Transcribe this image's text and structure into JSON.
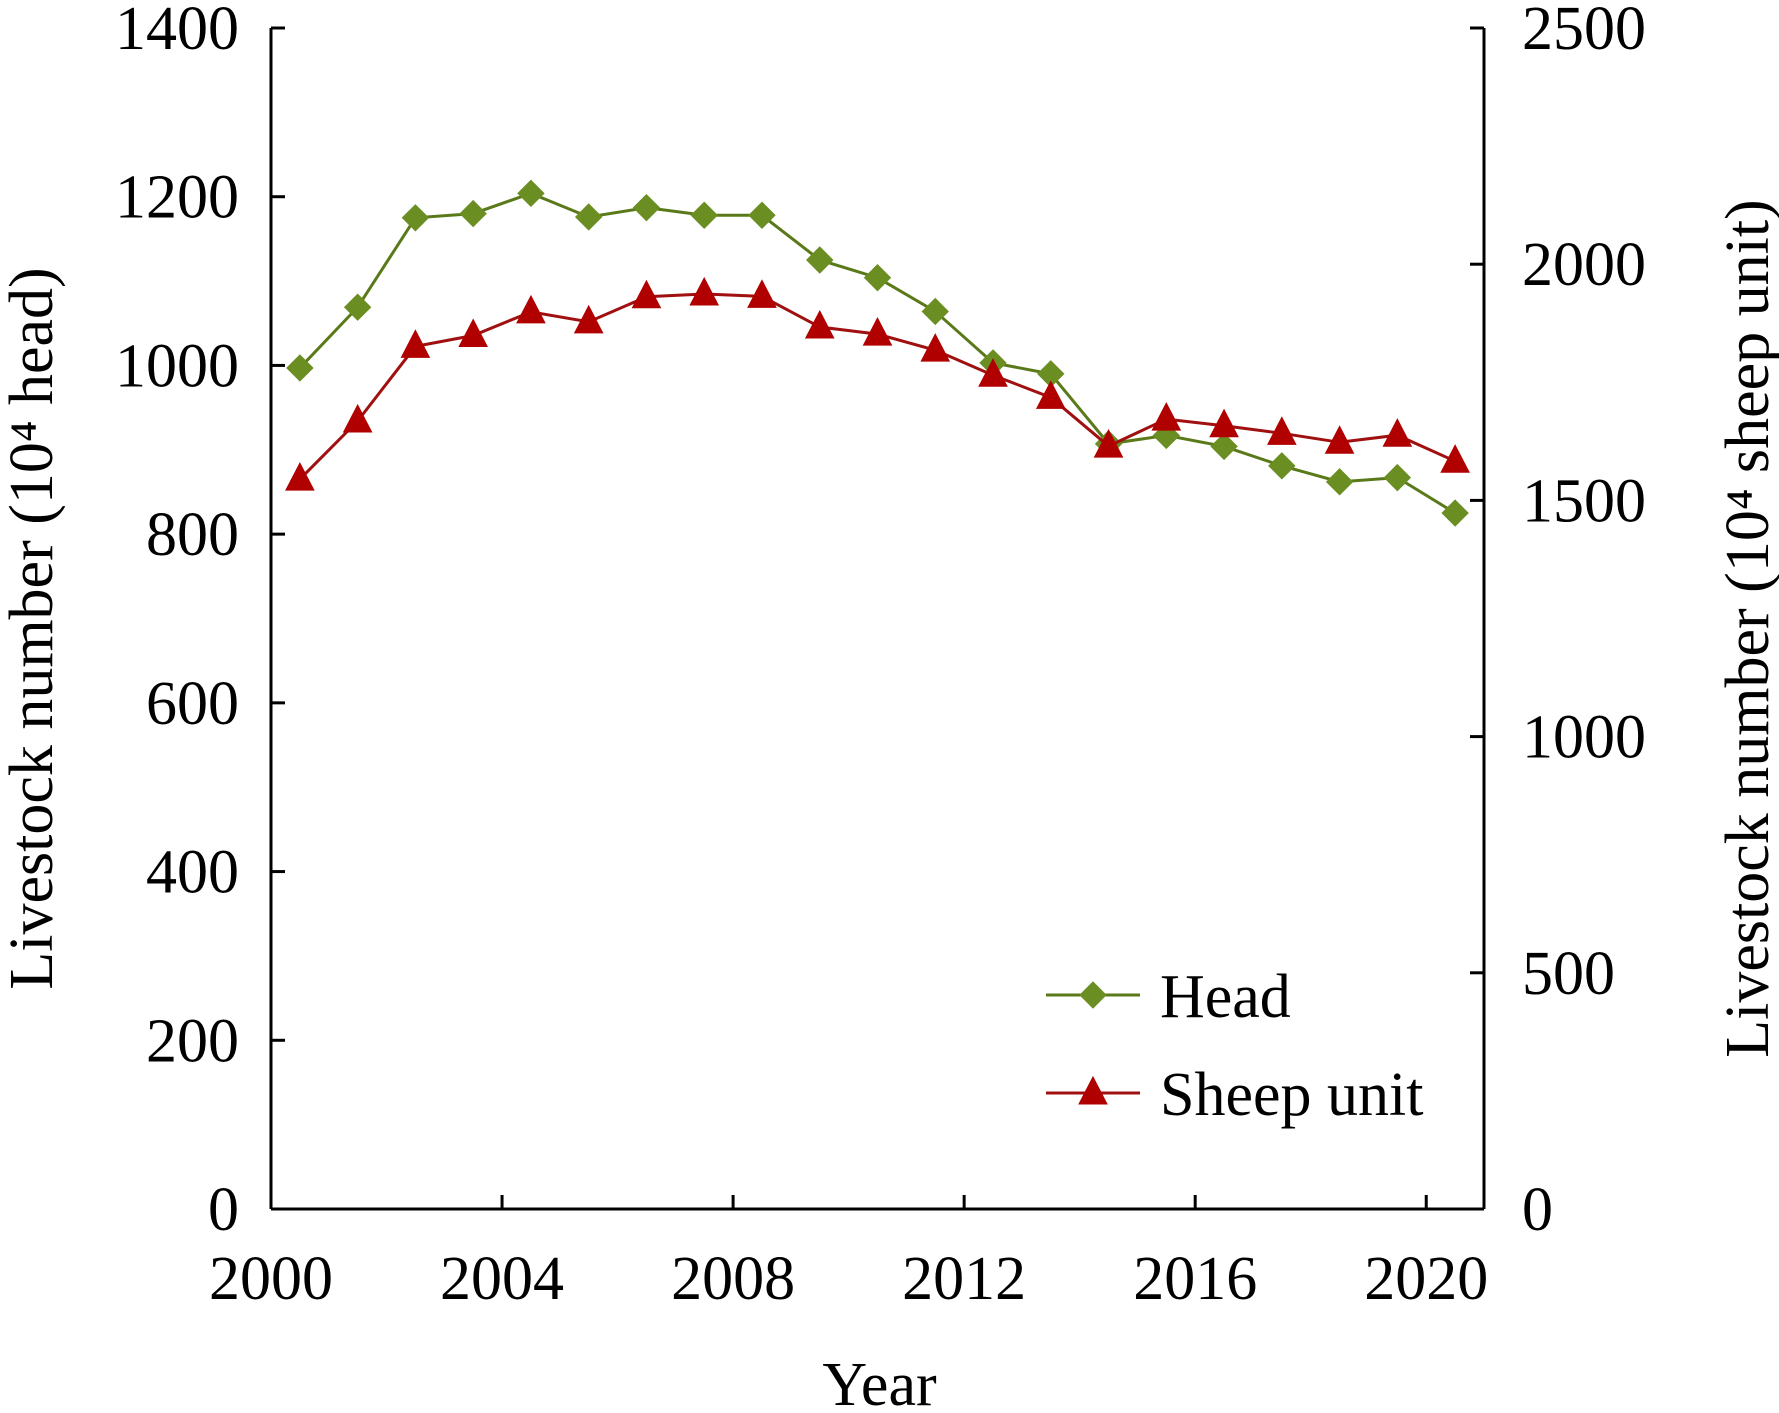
{
  "chart_data": {
    "type": "line",
    "x": [
      2000.5,
      2001.5,
      2002.5,
      2003.5,
      2004.5,
      2005.5,
      2006.5,
      2007.5,
      2008.5,
      2009.5,
      2010.5,
      2011.5,
      2012.5,
      2013.5,
      2014.5,
      2015.5,
      2016.5,
      2017.5,
      2018.5,
      2019.5,
      2020.5
    ],
    "xlabel": "Year",
    "xlim": [
      2000,
      2021
    ],
    "xticks": [
      2000,
      2004,
      2008,
      2012,
      2016,
      2020
    ],
    "xtick_labels": [
      "2000",
      "2004",
      "2008",
      "2012",
      "2016",
      "2020"
    ],
    "ylabel_left": "Livestock number (10⁴ head)",
    "ylim_left": [
      0,
      1400
    ],
    "yticks_left": [
      0,
      200,
      400,
      600,
      800,
      1000,
      1200,
      1400
    ],
    "ytick_labels_left": [
      "0",
      "200",
      "400",
      "600",
      "800",
      "1000",
      "1200",
      "1400"
    ],
    "ylabel_right": "Livestock number (10⁴ sheep unit)",
    "ylim_right": [
      0,
      2500
    ],
    "yticks_right": [
      0,
      500,
      1000,
      1500,
      2000,
      2500
    ],
    "ytick_labels_right": [
      "0",
      "500",
      "1000",
      "1500",
      "2000",
      "2500"
    ],
    "grid": false,
    "legend_position": "bottom-right",
    "series": [
      {
        "name": "Head",
        "axis": "left",
        "marker": "diamond",
        "color": "#5a7a1a",
        "marker_color": "#6b8e23",
        "values": [
          997,
          1069,
          1175,
          1180,
          1204,
          1176,
          1187,
          1178,
          1178,
          1125,
          1104,
          1064,
          1003,
          990,
          907,
          917,
          904,
          881,
          862,
          867,
          825
        ]
      },
      {
        "name": "Sheep unit",
        "axis": "right",
        "marker": "triangle",
        "color": "#a01010",
        "marker_color": "#b00000",
        "values": [
          1545,
          1668,
          1826,
          1849,
          1899,
          1878,
          1931,
          1937,
          1932,
          1867,
          1852,
          1818,
          1765,
          1718,
          1615,
          1672,
          1658,
          1642,
          1623,
          1638,
          1583
        ]
      }
    ]
  }
}
